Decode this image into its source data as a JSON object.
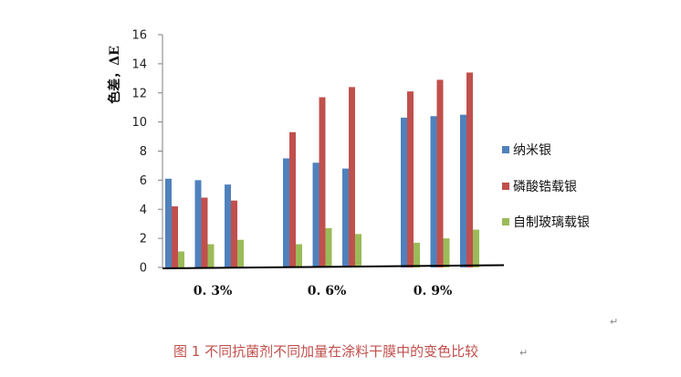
{
  "chart_data": {
    "type": "bar",
    "categories": [
      "0. 3%",
      "0. 6%",
      "0. 9%"
    ],
    "groups_per_category": 3,
    "series": [
      {
        "name": "纳米银",
        "color": "#4f81bd",
        "values": [
          [
            6.1,
            6.0,
            5.7
          ],
          [
            7.5,
            7.2,
            6.8
          ],
          [
            10.3,
            10.4,
            10.5
          ]
        ]
      },
      {
        "name": "磷酸锆载银",
        "color": "#c0504d",
        "values": [
          [
            4.2,
            4.8,
            4.6
          ],
          [
            9.3,
            11.7,
            12.4
          ],
          [
            12.1,
            12.9,
            13.4
          ]
        ]
      },
      {
        "name": "自制玻璃载银",
        "color": "#9bbb59",
        "values": [
          [
            1.1,
            1.6,
            1.9
          ],
          [
            1.6,
            2.7,
            2.3
          ],
          [
            1.7,
            2.0,
            2.6
          ]
        ]
      }
    ],
    "ylabel": "色差，ΔE",
    "xlabel": "",
    "ylim": [
      0,
      16
    ],
    "yticks": [
      "0",
      "2",
      "4",
      "6",
      "8",
      "10",
      "12",
      "14",
      "16"
    ],
    "grid": false,
    "legend_position": "right"
  },
  "caption": "图 1  不同抗菌剂不同加量在涂料干膜中的变色比较",
  "caption_mark": "↵",
  "stray_mark": "↵"
}
